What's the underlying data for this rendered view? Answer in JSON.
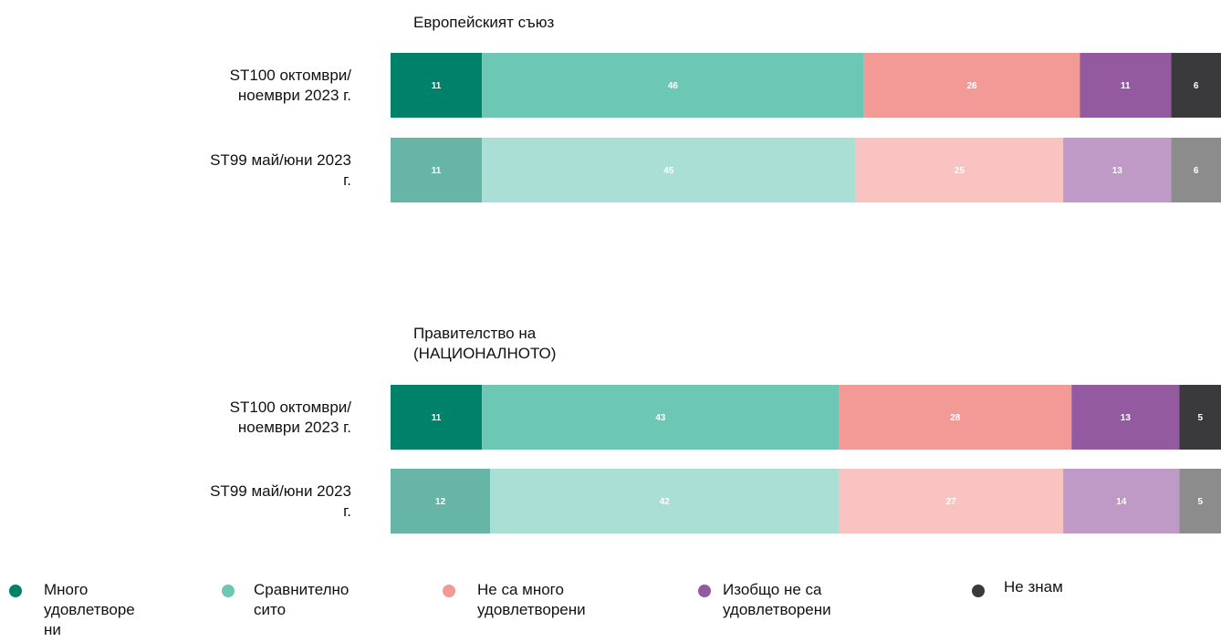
{
  "chart_data": [
    {
      "type": "stacked-bar-horizontal",
      "title": "Европейският съюз",
      "categories": [
        "ST100 октомври/ноември 2023 г.",
        "ST99 май/юни 2023 г."
      ],
      "series": [
        {
          "name": "Много удовлетворени",
          "colors": [
            "#00826a",
            "#67b5a6"
          ],
          "values": [
            11,
            11
          ]
        },
        {
          "name": "Сравнително сито",
          "colors": [
            "#6cc7b5",
            "#aadfd5"
          ],
          "values": [
            46,
            45
          ]
        },
        {
          "name": "Не са много удовлетворени",
          "colors": [
            "#f49a96",
            "#f9c3c1"
          ],
          "values": [
            26,
            25
          ]
        },
        {
          "name": "Изобщо не са удовлетворени",
          "colors": [
            "#935aa0",
            "#bf9ac7"
          ],
          "values": [
            11,
            13
          ]
        },
        {
          "name": "Не знам",
          "colors": [
            "#3a3a3c",
            "#8c8c8c"
          ],
          "values": [
            6,
            6
          ]
        }
      ]
    },
    {
      "type": "stacked-bar-horizontal",
      "title": "Правителство на (НАЦИОНАЛНОТО)",
      "categories": [
        "ST100 октомври/ноември 2023 г.",
        "ST99 май/юни 2023 г."
      ],
      "series": [
        {
          "colors": [
            "#00826a",
            "#67b5a6"
          ],
          "values": [
            11,
            12
          ]
        },
        {
          "colors": [
            "#6cc7b5",
            "#aadfd5"
          ],
          "values": [
            43,
            42
          ]
        },
        {
          "colors": [
            "#f49a96",
            "#f9c3c1"
          ],
          "values": [
            28,
            27
          ]
        },
        {
          "colors": [
            "#935aa0",
            "#bf9ac7"
          ],
          "values": [
            13,
            14
          ]
        },
        {
          "colors": [
            "#3a3a3c",
            "#8c8c8c"
          ],
          "values": [
            5,
            5
          ]
        }
      ]
    }
  ]
}
